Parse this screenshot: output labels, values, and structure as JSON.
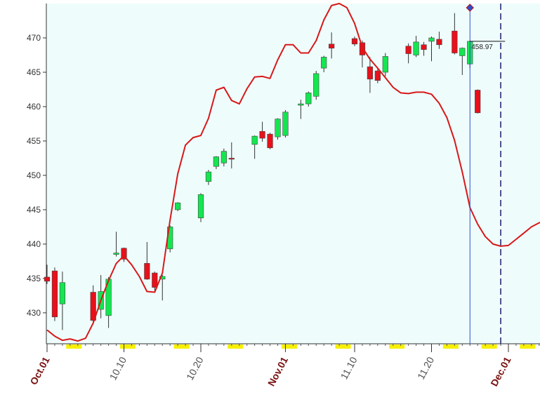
{
  "chart_data": {
    "type": "candlestick",
    "ylim": [
      425.5,
      475.0
    ],
    "yticks": [
      430,
      435,
      440,
      445,
      450,
      455,
      460,
      465,
      470
    ],
    "xticks": [
      {
        "label": "Oct.01",
        "bar": 0,
        "style": "month"
      },
      {
        "label": "10.10",
        "bar": 10,
        "style": "day"
      },
      {
        "label": "10.20",
        "bar": 20,
        "style": "day"
      },
      {
        "label": "Nov.01",
        "bar": 31,
        "style": "month"
      },
      {
        "label": "11.10",
        "bar": 40,
        "style": "day"
      },
      {
        "label": "11.20",
        "bar": 50,
        "style": "day"
      },
      {
        "label": "Dec.01",
        "bar": 60,
        "style": "month"
      }
    ],
    "candles": [
      {
        "o": 435.2,
        "h": 437.0,
        "l": 434.2,
        "c": 434.6
      },
      {
        "o": 436.1,
        "h": 436.6,
        "l": 428.8,
        "c": 429.4
      },
      {
        "o": 431.3,
        "h": 436.0,
        "l": 427.5,
        "c": 434.4
      },
      null,
      null,
      null,
      {
        "o": 433.0,
        "h": 434.0,
        "l": 428.5,
        "c": 428.9
      },
      {
        "o": 430.5,
        "h": 435.5,
        "l": 429.2,
        "c": 433.1
      },
      {
        "o": 429.6,
        "h": 435.2,
        "l": 427.8,
        "c": 434.9
      },
      {
        "o": 438.5,
        "h": 441.8,
        "l": 438.2,
        "c": 438.7
      },
      {
        "o": 439.4,
        "h": 439.5,
        "l": 437.4,
        "c": 437.8
      },
      null,
      null,
      {
        "o": 437.2,
        "h": 440.3,
        "l": 434.8,
        "c": 434.9
      },
      {
        "o": 435.8,
        "h": 436.0,
        "l": 433.2,
        "c": 433.7
      },
      {
        "o": 434.9,
        "h": 435.5,
        "l": 431.8,
        "c": 435.3
      },
      {
        "o": 439.3,
        "h": 442.7,
        "l": 438.8,
        "c": 442.5
      },
      {
        "o": 445.0,
        "h": 446.1,
        "l": 444.8,
        "c": 446.0
      },
      null,
      null,
      {
        "o": 443.8,
        "h": 447.4,
        "l": 443.2,
        "c": 447.2
      },
      {
        "o": 449.1,
        "h": 450.8,
        "l": 448.6,
        "c": 450.5
      },
      {
        "o": 451.3,
        "h": 452.8,
        "l": 450.9,
        "c": 452.7
      },
      {
        "o": 451.8,
        "h": 453.9,
        "l": 451.3,
        "c": 453.5
      },
      {
        "o": 452.5,
        "h": 454.8,
        "l": 451.0,
        "c": 452.4
      },
      null,
      null,
      {
        "o": 454.5,
        "h": 455.8,
        "l": 452.4,
        "c": 455.7
      },
      {
        "o": 456.4,
        "h": 457.8,
        "l": 454.9,
        "c": 455.4
      },
      {
        "o": 456.0,
        "h": 456.2,
        "l": 453.8,
        "c": 454.0
      },
      {
        "o": 455.6,
        "h": 458.3,
        "l": 455.2,
        "c": 458.2
      },
      {
        "o": 455.8,
        "h": 459.5,
        "l": 455.5,
        "c": 459.2
      },
      null,
      {
        "o": 460.2,
        "h": 461.0,
        "l": 458.2,
        "c": 460.4
      },
      {
        "o": 460.4,
        "h": 462.2,
        "l": 460.0,
        "c": 462.0
      },
      {
        "o": 461.5,
        "h": 465.2,
        "l": 461.0,
        "c": 464.8
      },
      {
        "o": 465.6,
        "h": 467.4,
        "l": 465.0,
        "c": 467.2
      },
      {
        "o": 469.1,
        "h": 470.8,
        "l": 467.0,
        "c": 468.5
      },
      null,
      null,
      {
        "o": 469.9,
        "h": 470.2,
        "l": 468.8,
        "c": 469.1
      },
      {
        "o": 469.3,
        "h": 469.6,
        "l": 465.7,
        "c": 467.5
      },
      {
        "o": 465.8,
        "h": 467.2,
        "l": 462.0,
        "c": 464.0
      },
      {
        "o": 465.2,
        "h": 465.6,
        "l": 463.4,
        "c": 463.8
      },
      {
        "o": 465.0,
        "h": 467.8,
        "l": 464.4,
        "c": 467.3
      },
      null,
      null,
      {
        "o": 468.8,
        "h": 469.2,
        "l": 466.3,
        "c": 467.7
      },
      {
        "o": 467.5,
        "h": 470.3,
        "l": 467.2,
        "c": 469.4
      },
      {
        "o": 469.0,
        "h": 469.4,
        "l": 467.4,
        "c": 468.3
      },
      {
        "o": 469.5,
        "h": 470.2,
        "l": 466.6,
        "c": 470.0
      },
      {
        "o": 469.8,
        "h": 470.9,
        "l": 468.4,
        "c": 469.0
      },
      null,
      {
        "o": 471.0,
        "h": 473.6,
        "l": 467.6,
        "c": 467.8
      },
      {
        "o": 467.4,
        "h": 468.6,
        "l": 464.6,
        "c": 468.5
      },
      {
        "o": 466.2,
        "h": 469.6,
        "l": 465.6,
        "c": 469.5
      },
      {
        "o": 462.4,
        "h": 462.5,
        "l": 459.0,
        "c": 459.1
      }
    ],
    "bull_color": "#14e650",
    "bear_color": "#e8101a",
    "ma_color": "#d81818",
    "bg_color": "#effcfc",
    "marker_color": "#2a4fd0",
    "projection_color": "#1c1c6e",
    "ma_line": [
      [
        0,
        427.5
      ],
      [
        1,
        426.6
      ],
      [
        2,
        426.0
      ],
      [
        3,
        426.2
      ],
      [
        4,
        425.9
      ],
      [
        5,
        426.3
      ],
      [
        6,
        428.5
      ],
      [
        7,
        431.8
      ],
      [
        8,
        434.7
      ],
      [
        9,
        437.2
      ],
      [
        10,
        438.3
      ],
      [
        11,
        437.0
      ],
      [
        12,
        435.3
      ],
      [
        13,
        433.1
      ],
      [
        14,
        433.0
      ],
      [
        15,
        435.8
      ],
      [
        16,
        443.5
      ],
      [
        17,
        450.2
      ],
      [
        18,
        454.4
      ],
      [
        19,
        455.5
      ],
      [
        20,
        455.8
      ],
      [
        21,
        458.3
      ],
      [
        22,
        462.4
      ],
      [
        23,
        462.8
      ],
      [
        24,
        460.9
      ],
      [
        25,
        460.4
      ],
      [
        26,
        462.6
      ],
      [
        27,
        464.3
      ],
      [
        28,
        464.4
      ],
      [
        29,
        464.1
      ],
      [
        30,
        466.8
      ],
      [
        31,
        469.0
      ],
      [
        32,
        469.0
      ],
      [
        33,
        467.8
      ],
      [
        34,
        467.8
      ],
      [
        35,
        469.6
      ],
      [
        36,
        472.6
      ],
      [
        37,
        474.7
      ],
      [
        38,
        475.0
      ],
      [
        39,
        474.4
      ],
      [
        40,
        472.1
      ],
      [
        41,
        468.6
      ],
      [
        42,
        466.9
      ],
      [
        43,
        465.6
      ],
      [
        44,
        464.2
      ],
      [
        45,
        462.8
      ],
      [
        46,
        462.0
      ],
      [
        47,
        461.9
      ],
      [
        48,
        462.1
      ],
      [
        49,
        462.1
      ],
      [
        50,
        461.8
      ],
      [
        51,
        460.5
      ],
      [
        52,
        458.4
      ],
      [
        53,
        455.1
      ],
      [
        54,
        450.5
      ],
      [
        55,
        445.3
      ],
      [
        56,
        442.9
      ],
      [
        57,
        441.1
      ],
      [
        58,
        440.0
      ],
      [
        59,
        439.7
      ],
      [
        60,
        439.8
      ],
      [
        61,
        440.7
      ],
      [
        62,
        441.6
      ],
      [
        63,
        442.5
      ],
      [
        64,
        443.1
      ],
      [
        65,
        443.5
      ]
    ],
    "last_price_label": "458.97",
    "last_bar": 55,
    "projection_bar": 59,
    "weekend_marks": [
      3.5,
      10.5,
      17.5,
      24.5,
      31.5,
      38.5,
      45.5,
      52.5,
      57.5,
      62.5
    ]
  }
}
